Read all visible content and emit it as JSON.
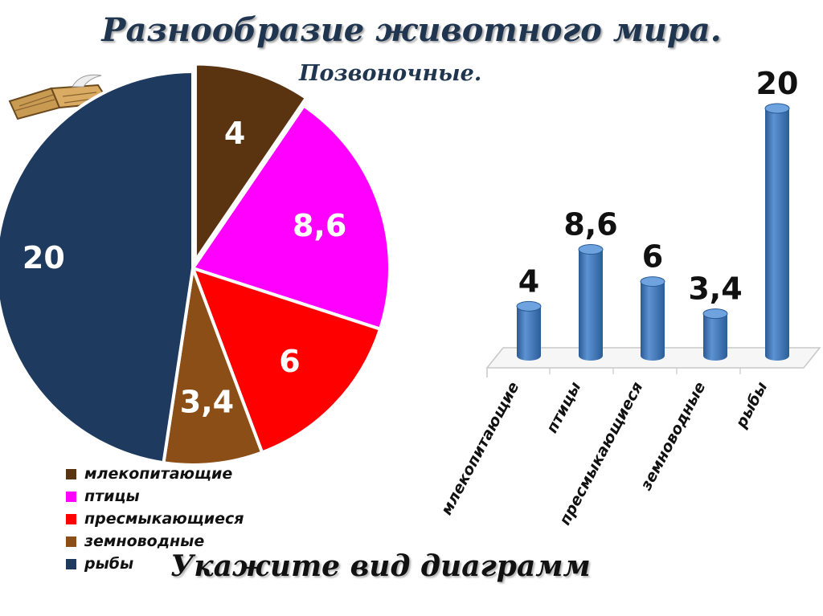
{
  "header": {
    "title": "Разнообразие животного мира.",
    "subtitle": "Позвоночные."
  },
  "footer": {
    "text": "Укажите вид диаграмм"
  },
  "chart_data": [
    {
      "type": "pie",
      "categories": [
        "млекопитающие",
        "птицы",
        "пресмыкающиеся",
        "земноводные",
        "рыбы"
      ],
      "values": [
        4,
        8.6,
        6,
        3.4,
        20
      ],
      "labels": [
        "4",
        "8,6",
        "6",
        "3,4",
        "20"
      ],
      "colors": [
        "#5a3310",
        "#ff00ff",
        "#ff0000",
        "#8a4e16",
        "#1e3a5f"
      ],
      "legend_position": "bottom-left"
    },
    {
      "type": "bar",
      "categories": [
        "млекопитающие",
        "птицы",
        "пресмыкающиеся",
        "земноводные",
        "рыбы"
      ],
      "values": [
        4,
        8.6,
        6,
        3.4,
        20
      ],
      "labels": [
        "4",
        "8,6",
        "6",
        "3,4",
        "20"
      ],
      "color": "#3a6faa",
      "ylim": [
        0,
        20
      ],
      "grid": false
    }
  ]
}
